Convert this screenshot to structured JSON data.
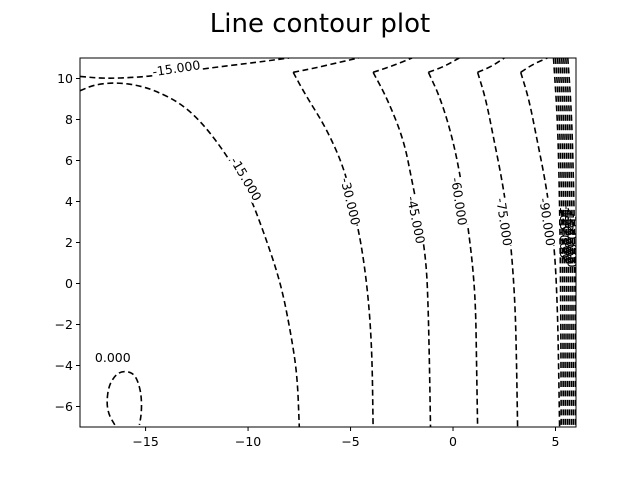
{
  "chart_data": {
    "type": "contour",
    "title": "Line contour plot",
    "xlabel": "",
    "ylabel": "",
    "xlim": [
      -18.2,
      6.0
    ],
    "ylim": [
      -7.0,
      11.0
    ],
    "xticks": [
      -15,
      -10,
      -5,
      0,
      5
    ],
    "xtick_labels": [
      "−15",
      "−10",
      "−5",
      "0",
      "5"
    ],
    "yticks": [
      -6,
      -4,
      -2,
      0,
      2,
      4,
      6,
      8,
      10
    ],
    "ytick_labels": [
      "−6",
      "−4",
      "−2",
      "0",
      "2",
      "4",
      "6",
      "8",
      "10"
    ],
    "line_style": "dashed",
    "line_color": "#000000",
    "grid": false,
    "contours": [
      {
        "level": 0.0,
        "label": "0.000",
        "points": [
          [
            -16.5,
            -6.9
          ],
          [
            -16.8,
            -6.4
          ],
          [
            -16.9,
            -5.8
          ],
          [
            -16.8,
            -5.0
          ],
          [
            -16.5,
            -4.5
          ],
          [
            -16.2,
            -4.3
          ],
          [
            -15.8,
            -4.3
          ],
          [
            -15.5,
            -4.5
          ],
          [
            -15.3,
            -5.0
          ],
          [
            -15.2,
            -5.6
          ],
          [
            -15.2,
            -6.3
          ],
          [
            -15.3,
            -6.9
          ]
        ],
        "label_at": [
          -16.6,
          -3.6
        ]
      },
      {
        "level": -15.0,
        "label": "-15.000",
        "points": [
          [
            -18.2,
            9.4
          ],
          [
            -17.5,
            9.7
          ],
          [
            -16.5,
            9.8
          ],
          [
            -15.5,
            9.7
          ],
          [
            -14.5,
            9.4
          ],
          [
            -13.3,
            8.8
          ],
          [
            -12.2,
            7.8
          ],
          [
            -11.0,
            6.2
          ],
          [
            -10.0,
            4.5
          ],
          [
            -9.2,
            2.4
          ],
          [
            -8.4,
            0.0
          ],
          [
            -7.9,
            -2.5
          ],
          [
            -7.6,
            -4.5
          ],
          [
            -7.5,
            -7.0
          ]
        ],
        "label_at": [
          -10.1,
          5.1
        ]
      },
      {
        "level": -15.0,
        "label": "-15.000",
        "points": [
          [
            -18.2,
            10.1
          ],
          [
            -17.0,
            10.0
          ],
          [
            -15.5,
            10.05
          ],
          [
            -14.0,
            10.2
          ],
          [
            -12.0,
            10.5
          ],
          [
            -9.5,
            10.8
          ],
          [
            -8.0,
            11.0
          ]
        ],
        "label_at": [
          -13.5,
          10.5
        ]
      },
      {
        "level": -30.0,
        "label": "-30.000",
        "points": [
          [
            -7.8,
            10.3
          ],
          [
            -7.2,
            9.2
          ],
          [
            -6.2,
            7.6
          ],
          [
            -5.3,
            5.6
          ],
          [
            -4.8,
            3.5
          ],
          [
            -4.4,
            1.5
          ],
          [
            -4.1,
            -1.0
          ],
          [
            -3.95,
            -3.5
          ],
          [
            -3.9,
            -7.0
          ]
        ],
        "label_at": [
          -5.0,
          4.0
        ]
      },
      {
        "level": -30.0,
        "label": "",
        "points": [
          [
            -7.8,
            10.3
          ],
          [
            -6.8,
            10.5
          ],
          [
            -5.5,
            10.8
          ],
          [
            -4.6,
            11.0
          ]
        ],
        "label_at": null
      },
      {
        "level": -45.0,
        "label": "-45.000",
        "points": [
          [
            -3.9,
            10.3
          ],
          [
            -3.2,
            9.0
          ],
          [
            -2.4,
            7.0
          ],
          [
            -2.0,
            5.0
          ],
          [
            -1.6,
            3.0
          ],
          [
            -1.3,
            1.0
          ],
          [
            -1.2,
            -1.5
          ],
          [
            -1.15,
            -4.0
          ],
          [
            -1.1,
            -7.0
          ]
        ],
        "label_at": [
          -1.8,
          3.1
        ]
      },
      {
        "level": -45.0,
        "label": "",
        "points": [
          [
            -3.9,
            10.3
          ],
          [
            -3.0,
            10.6
          ],
          [
            -2.0,
            11.0
          ]
        ],
        "label_at": null
      },
      {
        "level": -60.0,
        "label": "-60.000",
        "points": [
          [
            -1.2,
            10.3
          ],
          [
            -0.6,
            9.0
          ],
          [
            0.0,
            7.0
          ],
          [
            0.4,
            5.0
          ],
          [
            0.7,
            3.0
          ],
          [
            0.95,
            1.0
          ],
          [
            1.1,
            -1.0
          ],
          [
            1.15,
            -4.0
          ],
          [
            1.2,
            -7.0
          ]
        ],
        "label_at": [
          0.3,
          4.0
        ]
      },
      {
        "level": -60.0,
        "label": "",
        "points": [
          [
            -1.2,
            10.3
          ],
          [
            -0.4,
            10.6
          ],
          [
            0.3,
            11.0
          ]
        ],
        "label_at": null
      },
      {
        "level": -75.0,
        "label": "-75.000",
        "points": [
          [
            1.2,
            10.3
          ],
          [
            1.6,
            9.0
          ],
          [
            2.0,
            7.0
          ],
          [
            2.4,
            5.0
          ],
          [
            2.7,
            3.0
          ],
          [
            2.9,
            1.0
          ],
          [
            3.05,
            -1.5
          ],
          [
            3.1,
            -4.0
          ],
          [
            3.15,
            -7.0
          ]
        ],
        "label_at": [
          2.5,
          3.0
        ]
      },
      {
        "level": -75.0,
        "label": "",
        "points": [
          [
            1.2,
            10.3
          ],
          [
            1.9,
            10.6
          ],
          [
            2.5,
            11.0
          ]
        ],
        "label_at": null
      },
      {
        "level": -90.0,
        "label": "-90.000",
        "points": [
          [
            3.3,
            10.3
          ],
          [
            3.7,
            9.0
          ],
          [
            4.1,
            7.0
          ],
          [
            4.5,
            5.0
          ],
          [
            4.8,
            3.0
          ],
          [
            5.0,
            1.0
          ],
          [
            5.1,
            -1.5
          ],
          [
            5.15,
            -4.0
          ],
          [
            5.2,
            -7.0
          ]
        ],
        "label_at": [
          4.6,
          3.0
        ]
      },
      {
        "level": -90.0,
        "label": "",
        "points": [
          [
            3.3,
            10.3
          ],
          [
            3.9,
            10.7
          ],
          [
            4.6,
            11.0
          ]
        ],
        "label_at": null
      }
    ],
    "dense_edge": {
      "description": "closely packed contour lines near x=5..6",
      "x_start": 5.25,
      "x_end": 5.95,
      "count": 8,
      "labels": [
        "-105.000",
        "-120.000",
        "-135.000",
        "-150.000"
      ]
    }
  }
}
